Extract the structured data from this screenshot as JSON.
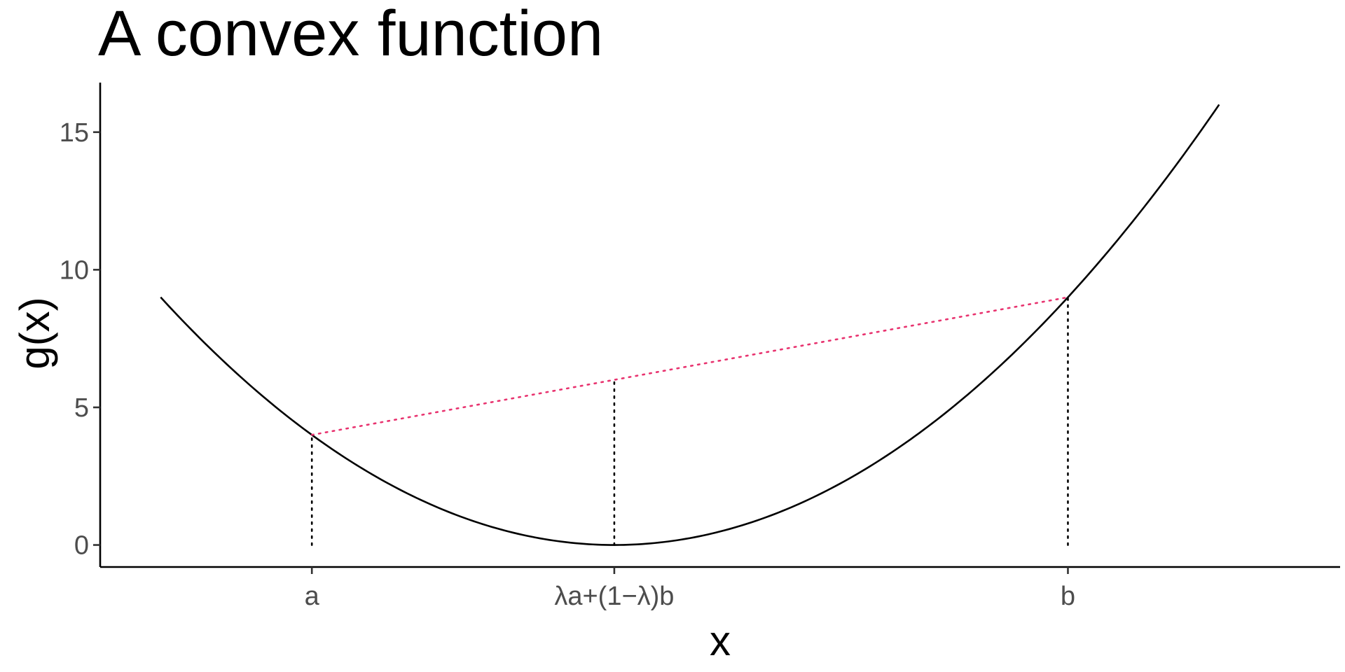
{
  "chart_data": {
    "type": "line",
    "title": "A convex function",
    "xlabel": "x",
    "ylabel": "g(x)",
    "xlim": [
      -3.4,
      4.8
    ],
    "ylim": [
      -0.8,
      16.8
    ],
    "grid": false,
    "legend": "none",
    "function": "(x)^2",
    "curve_domain": [
      -3,
      4
    ],
    "x_ticks": [
      {
        "value": -2,
        "label": "a"
      },
      {
        "value": 0,
        "label": "λa+(1−λ)b"
      },
      {
        "value": 3,
        "label": "b"
      }
    ],
    "y_ticks": [
      0,
      5,
      10,
      15
    ],
    "chord": {
      "x": [
        -2,
        3
      ],
      "y": [
        4,
        9
      ],
      "color": "#e8336f",
      "style": "dotted"
    },
    "guide_lines": [
      {
        "x": -2,
        "y_from": 0,
        "y_to": 4
      },
      {
        "x": 0,
        "y_from": 0,
        "y_to": 6
      },
      {
        "x": 3,
        "y_from": 0,
        "y_to": 9
      }
    ],
    "colors": {
      "curve": "#000000",
      "chord": "#e8336f",
      "guides": "#000000",
      "axis": "#000000"
    }
  }
}
